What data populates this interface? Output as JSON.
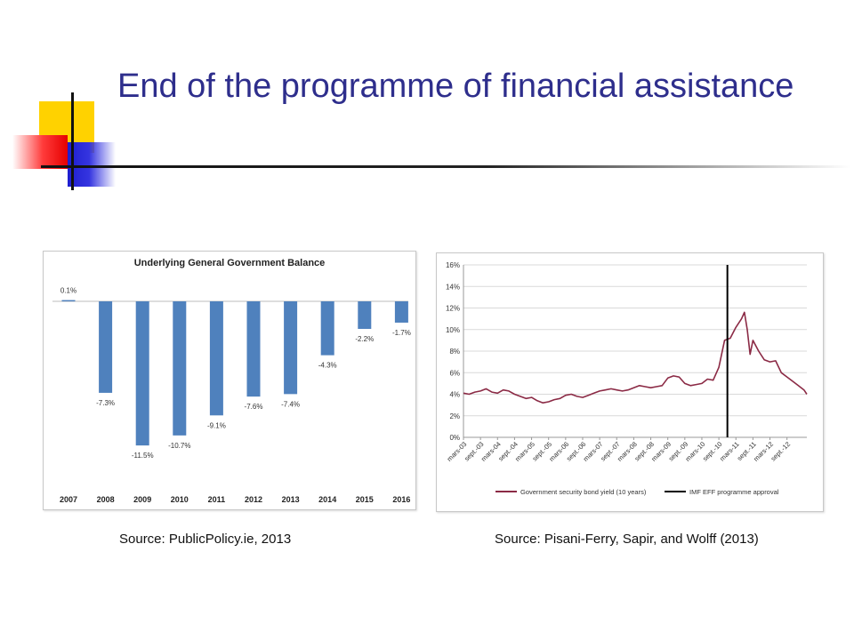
{
  "slide": {
    "title": "End of the programme of financial assistance",
    "source_left": "Source: PublicPolicy.ie, 2013",
    "source_right": "Source: Pisani-Ferry, Sapir, and Wolff (2013)"
  },
  "colors": {
    "title": "#2e2e8c",
    "bar": "#4f81bd",
    "yield_line": "#8b2a45",
    "programme_line": "#000000"
  },
  "chart_data": [
    {
      "type": "bar",
      "title": "Underlying General Government Balance",
      "categories": [
        "2007",
        "2008",
        "2009",
        "2010",
        "2011",
        "2012",
        "2013",
        "2014",
        "2015",
        "2016"
      ],
      "values": [
        0.1,
        -7.3,
        -11.5,
        -10.7,
        -9.1,
        -7.6,
        -7.4,
        -4.3,
        -2.2,
        -1.7
      ],
      "data_labels": [
        "0.1%",
        "-7.3%",
        "-11.5%",
        "-10.7%",
        "-9.1%",
        "-7.6%",
        "-7.4%",
        "-4.3%",
        "-2.2%",
        "-1.7%"
      ],
      "ylim": [
        -12.5,
        0.6
      ],
      "grid": false,
      "xlabel": "",
      "ylabel": ""
    },
    {
      "type": "line",
      "title": "",
      "x_tick_labels": [
        "mars-03",
        "sept.-03",
        "mars-04",
        "sept.-04",
        "mars-05",
        "sept.-05",
        "mars-06",
        "sept.-06",
        "mars-07",
        "sept.-07",
        "mars-08",
        "sept.-08",
        "mars-09",
        "sept.-09",
        "mars-10",
        "sept.-10",
        "mars-11",
        "sept.-11",
        "mars-12",
        "sept.-12"
      ],
      "x_range": [
        "2003-03",
        "2013-04"
      ],
      "y_ticks": [
        "0%",
        "2%",
        "4%",
        "6%",
        "8%",
        "10%",
        "12%",
        "14%",
        "16%"
      ],
      "ylim": [
        0,
        16
      ],
      "grid": true,
      "legend_position": "bottom",
      "series": [
        {
          "name": "Government security bond yield (10 years)",
          "x": [
            "2003-03",
            "2003-05",
            "2003-07",
            "2003-09",
            "2003-11",
            "2004-01",
            "2004-03",
            "2004-05",
            "2004-07",
            "2004-09",
            "2004-11",
            "2005-01",
            "2005-03",
            "2005-05",
            "2005-07",
            "2005-09",
            "2005-11",
            "2006-01",
            "2006-03",
            "2006-05",
            "2006-07",
            "2006-09",
            "2006-11",
            "2007-01",
            "2007-03",
            "2007-05",
            "2007-07",
            "2007-09",
            "2007-11",
            "2008-01",
            "2008-03",
            "2008-05",
            "2008-07",
            "2008-09",
            "2008-11",
            "2009-01",
            "2009-03",
            "2009-05",
            "2009-07",
            "2009-09",
            "2009-11",
            "2010-01",
            "2010-03",
            "2010-05",
            "2010-07",
            "2010-09",
            "2010-11",
            "2011-01",
            "2011-03",
            "2011-05",
            "2011-06",
            "2011-07",
            "2011-08",
            "2011-09",
            "2011-11",
            "2012-01",
            "2012-03",
            "2012-05",
            "2012-07",
            "2012-09",
            "2012-11",
            "2013-01",
            "2013-03",
            "2013-04"
          ],
          "y": [
            4.1,
            4.0,
            4.2,
            4.3,
            4.5,
            4.2,
            4.1,
            4.4,
            4.3,
            4.0,
            3.8,
            3.6,
            3.7,
            3.4,
            3.2,
            3.3,
            3.5,
            3.6,
            3.9,
            4.0,
            3.8,
            3.7,
            3.9,
            4.1,
            4.3,
            4.4,
            4.5,
            4.4,
            4.3,
            4.4,
            4.6,
            4.8,
            4.7,
            4.6,
            4.7,
            4.8,
            5.5,
            5.7,
            5.6,
            5.0,
            4.8,
            4.9,
            5.0,
            5.4,
            5.3,
            6.5,
            9.0,
            9.2,
            10.2,
            11.0,
            11.6,
            10.0,
            7.7,
            9.0,
            8.0,
            7.2,
            7.0,
            7.1,
            6.0,
            5.6,
            5.2,
            4.8,
            4.4,
            4.0
          ]
        },
        {
          "name": "IMF EFF programme approval",
          "x": [
            "2010-12",
            "2010-12"
          ],
          "y": [
            0,
            16
          ]
        }
      ]
    }
  ]
}
